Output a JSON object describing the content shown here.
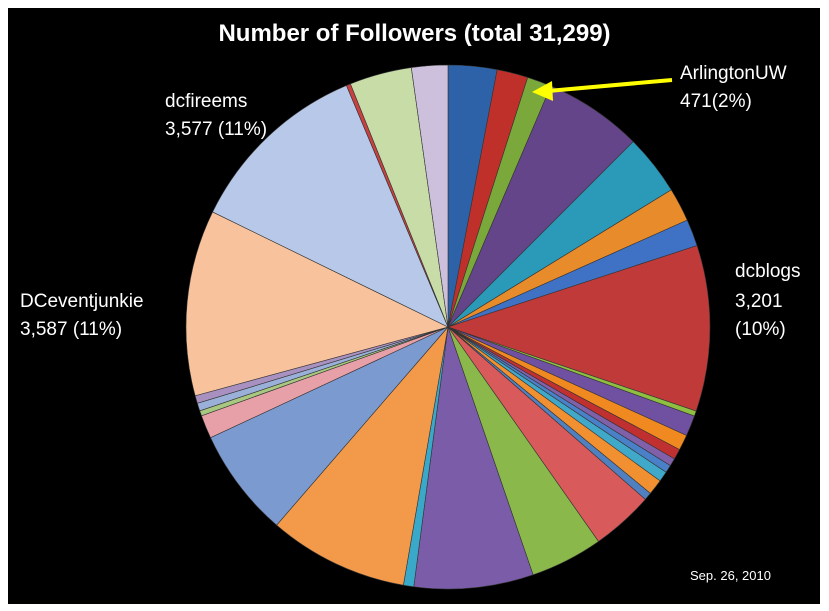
{
  "chart_data": {
    "type": "pie",
    "title": "Number of Followers (total 31,299)",
    "annotation": "Sep. 26, 2010",
    "categories": [
      null,
      null,
      "ArlingtonUW",
      null,
      null,
      null,
      null,
      "dcblogs",
      null,
      null,
      null,
      null,
      null,
      null,
      null,
      null,
      null,
      null,
      null,
      null,
      null,
      null,
      null,
      null,
      null,
      null,
      null,
      "DCeventjunkie",
      "dcfireems",
      null,
      null,
      null
    ],
    "values": [
      940,
      600,
      471,
      1900,
      1170,
      650,
      520,
      3201,
      100,
      400,
      300,
      200,
      150,
      150,
      200,
      300,
      150,
      1200,
      1400,
      2300,
      200,
      2700,
      2100,
      450,
      100,
      150,
      150,
      3587,
      3577,
      83,
      1200,
      700
    ],
    "value_labels": [
      null,
      null,
      "471(2%)",
      null,
      null,
      null,
      null,
      "3,201 (10%)",
      null,
      null,
      null,
      null,
      null,
      null,
      null,
      null,
      null,
      null,
      null,
      null,
      null,
      null,
      null,
      null,
      null,
      null,
      null,
      "3,587 (11%)",
      "3,577 (11%)",
      null,
      null,
      null
    ],
    "colors": [
      "#2e62a8",
      "#c0302a",
      "#7aa83a",
      "#64458a",
      "#2b9ab8",
      "#e88b2a",
      "#3f72c4",
      "#c03a3a",
      "#8fbf40",
      "#7050a0",
      "#f08a20",
      "#c03030",
      "#8060a8",
      "#4a80c8",
      "#40a8c8",
      "#f09030",
      "#5080c0",
      "#d85a5a",
      "#8ab84a",
      "#7a5ca8",
      "#3aa8c8",
      "#f39a4a",
      "#7b9ad0",
      "#e8a0a8",
      "#a8c880",
      "#9ab0d8",
      "#a890c0",
      "#f8c29c",
      "#b8c8e8",
      "#c84040",
      "#c8dca8",
      "#cdc0dc"
    ]
  }
}
